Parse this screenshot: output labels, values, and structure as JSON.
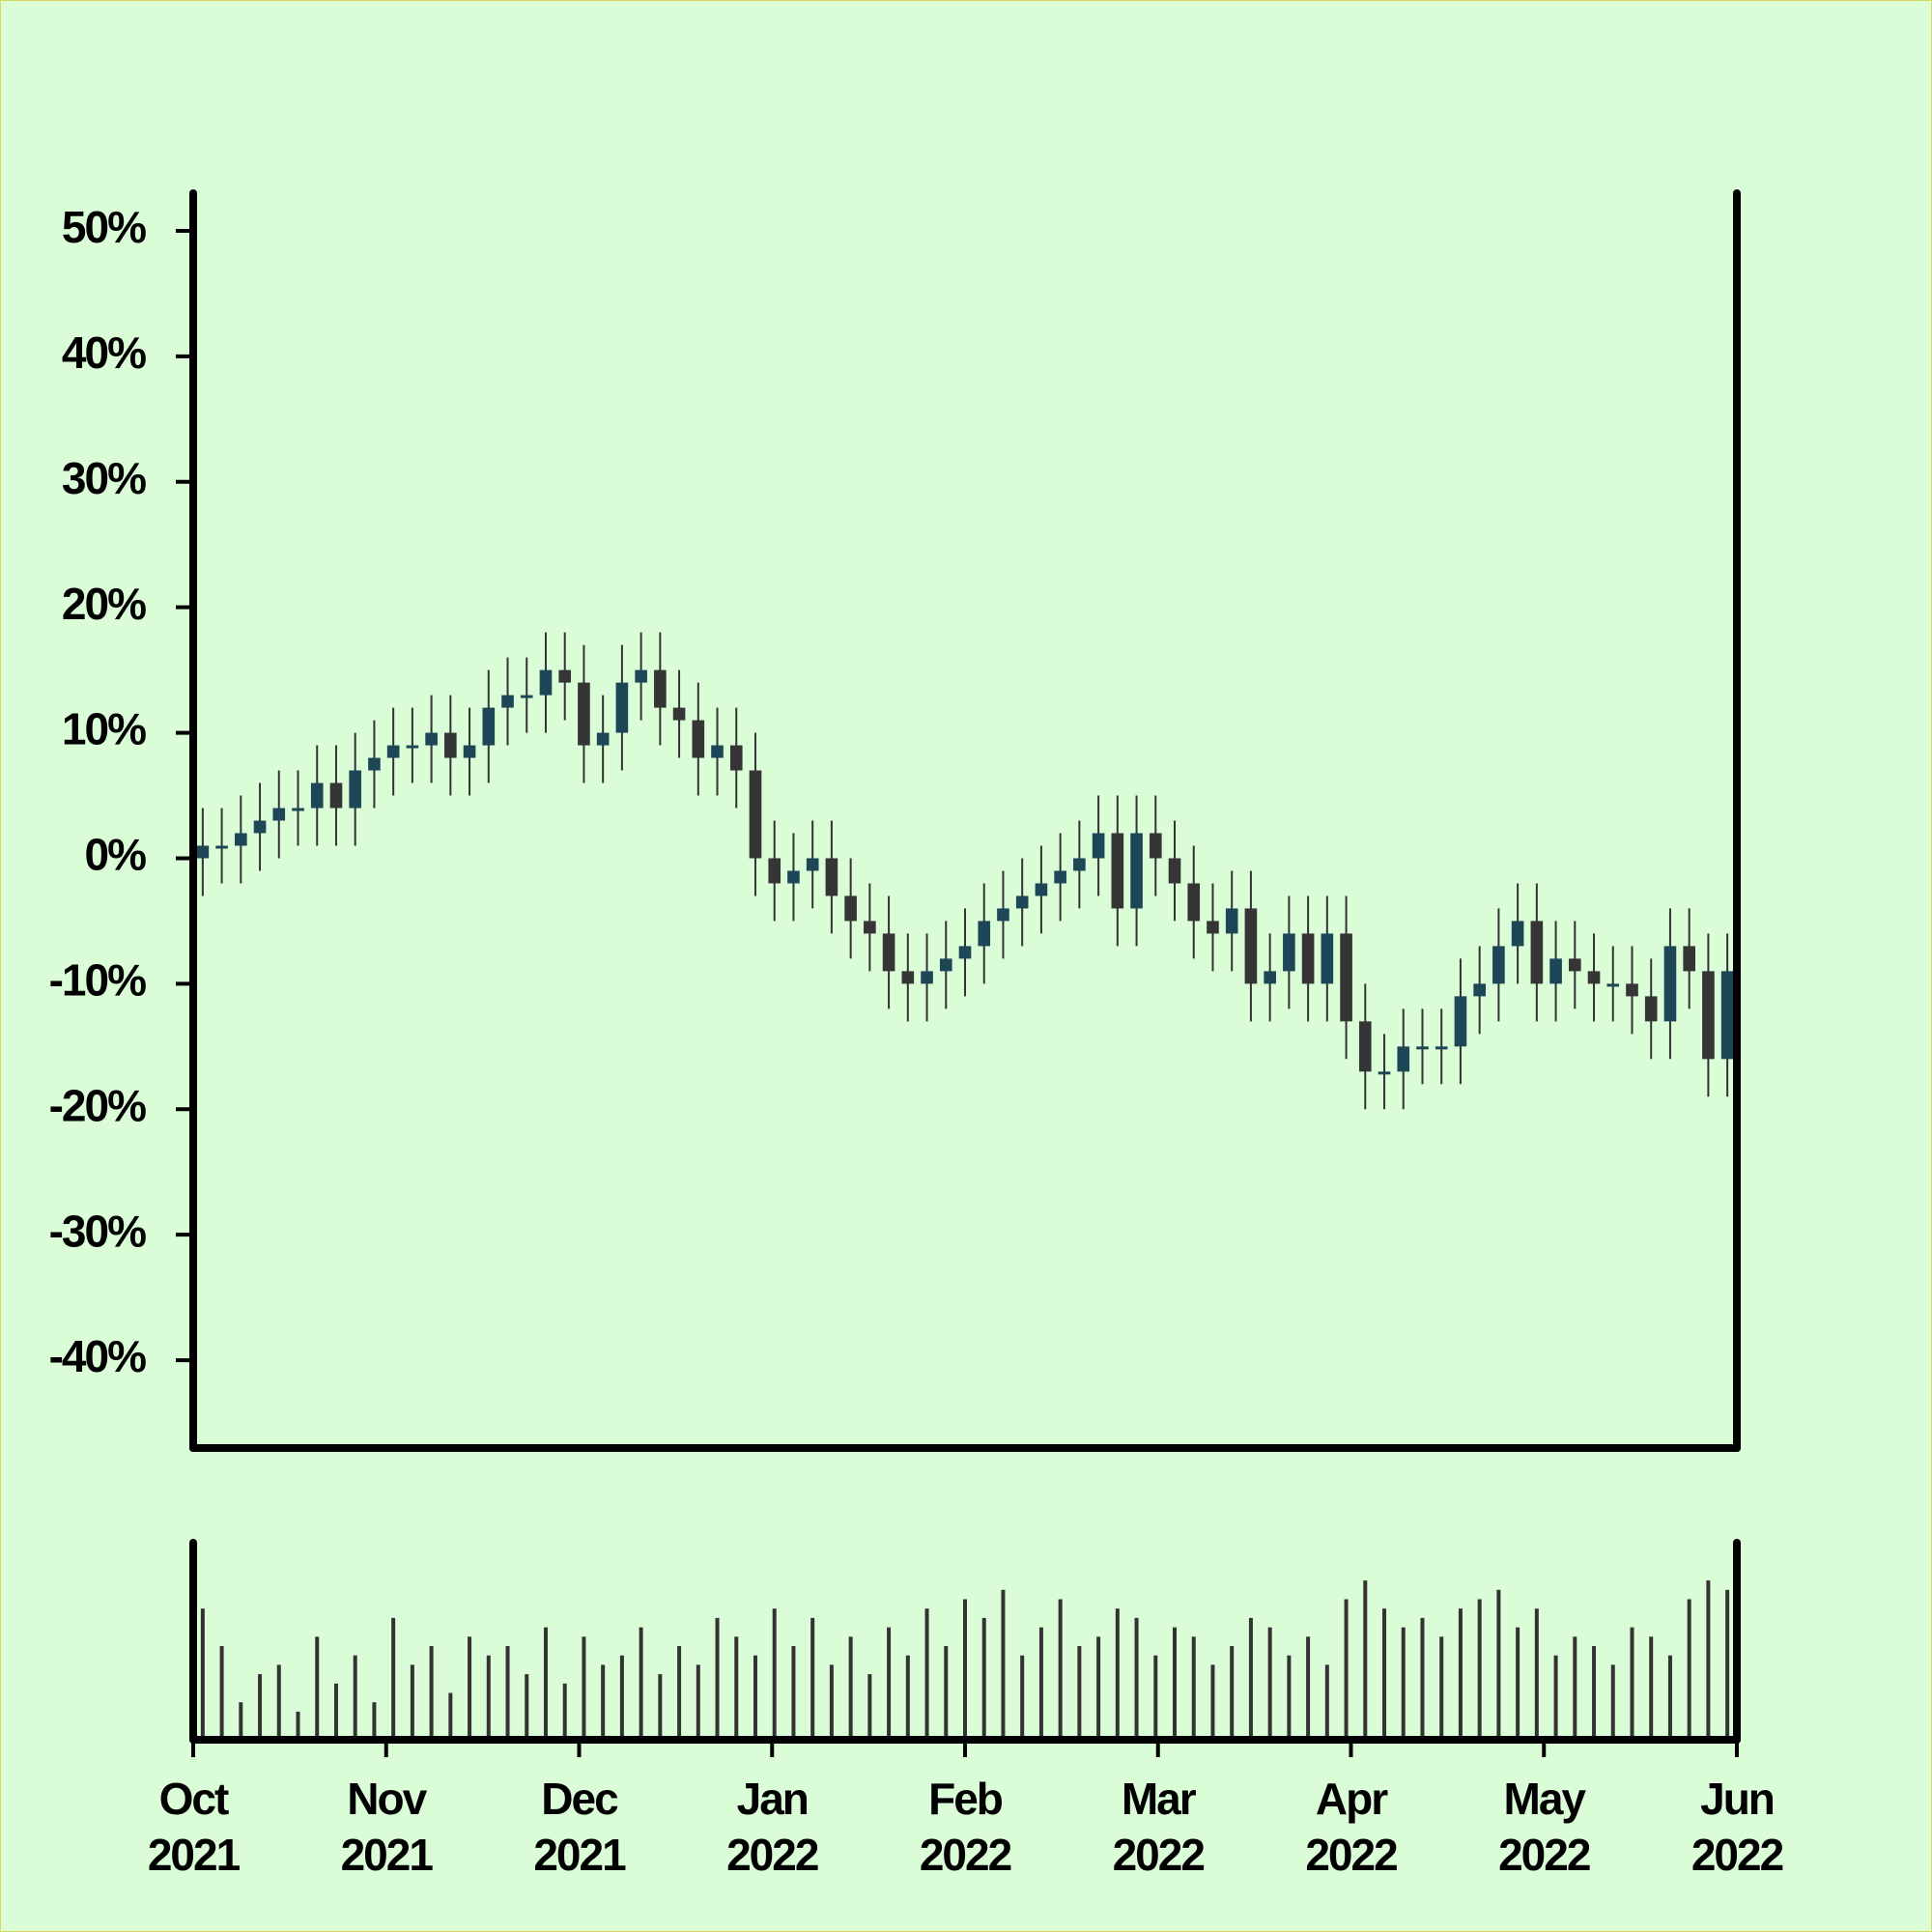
{
  "chart_data": {
    "type": "candlestick",
    "xlim": [
      "2021-10",
      "2022-06"
    ],
    "xticks": [
      {
        "value": "2021-10",
        "label": "Oct 2021"
      },
      {
        "value": "2021-11",
        "label": "Nov 2021"
      },
      {
        "value": "2021-12",
        "label": "Dec 2021"
      },
      {
        "value": "2022-01",
        "label": "Jan 2022"
      },
      {
        "value": "2022-02",
        "label": "Feb 2022"
      },
      {
        "value": "2022-03",
        "label": "Mar 2022"
      },
      {
        "value": "2022-04",
        "label": "Apr 2022"
      },
      {
        "value": "2022-05",
        "label": "May 2022"
      },
      {
        "value": "2022-06",
        "label": "Jun 2022"
      }
    ],
    "ylim": [
      -47,
      53
    ],
    "yticks": [
      {
        "value": -40,
        "label": "-40%"
      },
      {
        "value": -30,
        "label": "-30%"
      },
      {
        "value": -20,
        "label": "-20%"
      },
      {
        "value": -10,
        "label": "-10%"
      },
      {
        "value": 0,
        "label": "0%"
      },
      {
        "value": 10,
        "label": "10%"
      },
      {
        "value": 20,
        "label": "20%"
      },
      {
        "value": 30,
        "label": "30%"
      },
      {
        "value": 40,
        "label": "40%"
      },
      {
        "value": 50,
        "label": "50%"
      }
    ],
    "color_up": "#1d4656",
    "color_down": "#353535",
    "wick_color": "#333333",
    "volume_color": "#333333",
    "volume_lim": [
      0,
      100
    ],
    "open": [
      0,
      1,
      1,
      2,
      3,
      4,
      4,
      6,
      4,
      7,
      8,
      9,
      9,
      10,
      8,
      9,
      12,
      13,
      13,
      15,
      14,
      9,
      10,
      14,
      15,
      12,
      11,
      8,
      9,
      7,
      0,
      -2,
      -1,
      0,
      -3,
      -5,
      -6,
      -9,
      -10,
      -9,
      -8,
      -7,
      -5,
      -4,
      -3,
      -2,
      -1,
      0,
      2,
      -4,
      2,
      0,
      -2,
      -5,
      -6,
      -4,
      -10,
      -9,
      -6,
      -10,
      -6,
      -13,
      -17,
      -17,
      -15,
      -15,
      -15,
      -11,
      -10,
      -7,
      -5,
      -10,
      -8,
      -9,
      -10,
      -10,
      -11,
      -13,
      -7,
      -9,
      -16
    ],
    "high": [
      4,
      4,
      5,
      6,
      7,
      7,
      9,
      9,
      10,
      11,
      12,
      12,
      13,
      13,
      12,
      15,
      16,
      16,
      18,
      18,
      17,
      13,
      17,
      18,
      18,
      15,
      14,
      12,
      12,
      10,
      3,
      2,
      3,
      3,
      0,
      -2,
      -3,
      -6,
      -6,
      -5,
      -4,
      -2,
      -1,
      0,
      1,
      2,
      3,
      5,
      5,
      5,
      5,
      3,
      1,
      -2,
      -1,
      -1,
      -6,
      -3,
      -3,
      -3,
      -3,
      -10,
      -14,
      -12,
      -12,
      -12,
      -8,
      -7,
      -4,
      -2,
      -2,
      -5,
      -5,
      -6,
      -7,
      -7,
      -8,
      -4,
      -4,
      -6,
      -6
    ],
    "low": [
      -3,
      -2,
      -2,
      -1,
      0,
      1,
      1,
      1,
      1,
      4,
      5,
      6,
      6,
      5,
      5,
      6,
      9,
      10,
      10,
      11,
      6,
      6,
      7,
      11,
      9,
      8,
      5,
      5,
      4,
      -3,
      -5,
      -5,
      -4,
      -6,
      -8,
      -9,
      -12,
      -13,
      -13,
      -12,
      -11,
      -10,
      -8,
      -7,
      -6,
      -5,
      -4,
      -3,
      -7,
      -7,
      -3,
      -5,
      -8,
      -9,
      -9,
      -13,
      -13,
      -12,
      -13,
      -13,
      -16,
      -20,
      -20,
      -20,
      -18,
      -18,
      -18,
      -14,
      -13,
      -10,
      -13,
      -13,
      -12,
      -13,
      -13,
      -14,
      -16,
      -16,
      -12,
      -19,
      -19
    ],
    "close": [
      1,
      1,
      2,
      3,
      4,
      4,
      6,
      4,
      7,
      8,
      9,
      9,
      10,
      8,
      9,
      12,
      13,
      13,
      15,
      14,
      9,
      10,
      14,
      15,
      12,
      11,
      8,
      9,
      7,
      0,
      -2,
      -1,
      0,
      -3,
      -5,
      -6,
      -9,
      -10,
      -9,
      -8,
      -7,
      -5,
      -4,
      -3,
      -2,
      -1,
      0,
      2,
      -4,
      2,
      0,
      -2,
      -5,
      -6,
      -4,
      -10,
      -9,
      -6,
      -10,
      -6,
      -13,
      -17,
      -17,
      -15,
      -15,
      -15,
      -11,
      -10,
      -7,
      -5,
      -10,
      -8,
      -9,
      -10,
      -10,
      -11,
      -13,
      -7,
      -9,
      -16,
      -9
    ],
    "volume": [
      70,
      50,
      20,
      35,
      40,
      15,
      55,
      30,
      45,
      20,
      65,
      40,
      50,
      25,
      55,
      45,
      50,
      35,
      60,
      30,
      55,
      40,
      45,
      60,
      35,
      50,
      40,
      65,
      55,
      45,
      70,
      50,
      65,
      40,
      55,
      35,
      60,
      45,
      70,
      50,
      75,
      65,
      80,
      45,
      60,
      75,
      50,
      55,
      70,
      65,
      45,
      60,
      55,
      40,
      50,
      65,
      60,
      45,
      55,
      40,
      75,
      85,
      70,
      60,
      65,
      55,
      70,
      75,
      80,
      60,
      70,
      45,
      55,
      50,
      40,
      60,
      55,
      45,
      75,
      85,
      80
    ]
  }
}
